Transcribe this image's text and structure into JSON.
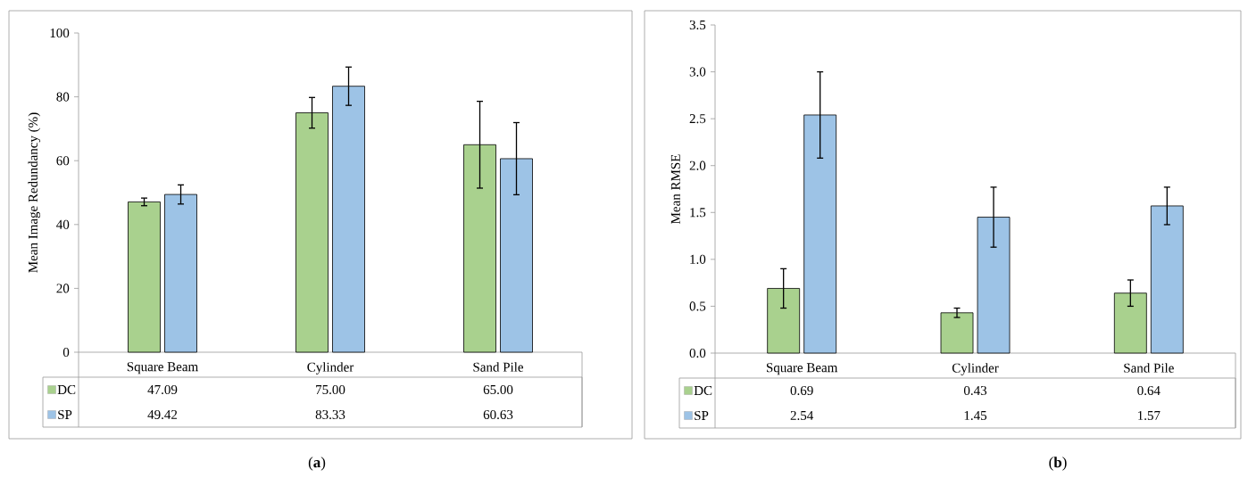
{
  "chart_data": [
    {
      "type": "bar",
      "ylabel": "Mean Image Redundancy (%)",
      "categories": [
        "Square Beam",
        "Cylinder",
        "Sand Pile"
      ],
      "ylim": [
        0,
        100
      ],
      "yticks": [
        0,
        20,
        40,
        60,
        80,
        100
      ],
      "legend": "bottom",
      "annotations": [
        "(**a**)"
      ],
      "series": [
        {
          "name": "DC",
          "color": "#a9d18e",
          "values": [
            47.09,
            75.0,
            65.0
          ],
          "errors": [
            1.2,
            4.8,
            13.6
          ],
          "value_labels": [
            "47.09",
            "75.00",
            "65.00"
          ]
        },
        {
          "name": "SP",
          "color": "#9dc3e6",
          "values": [
            49.42,
            83.33,
            60.63
          ],
          "errors": [
            3.0,
            6.0,
            11.3
          ],
          "value_labels": [
            "49.42",
            "83.33",
            "60.63"
          ]
        }
      ]
    },
    {
      "type": "bar",
      "ylabel": "Mean RMSE",
      "categories": [
        "Square Beam",
        "Cylinder",
        "Sand Pile"
      ],
      "ylim": [
        0,
        3.5
      ],
      "yticks": [
        {
          "value": 0,
          "label": "0.0"
        },
        {
          "value": 0.5,
          "label": "0.5"
        },
        {
          "value": 1,
          "label": "1.0"
        },
        {
          "value": 1.5,
          "label": "1.5"
        },
        {
          "value": 2,
          "label": "2.0"
        },
        {
          "value": 2.5,
          "label": "2.5"
        },
        {
          "value": 3,
          "label": "3.0"
        },
        {
          "value": 3.5,
          "label": "3.5"
        }
      ],
      "legend": "bottom",
      "annotations": [
        "(**b**)"
      ],
      "series": [
        {
          "name": "DC",
          "color": "#a9d18e",
          "values": [
            0.69,
            0.43,
            0.64
          ],
          "errors": [
            0.21,
            0.05,
            0.14
          ],
          "value_labels": [
            "0.69",
            "0.43",
            "0.64"
          ]
        },
        {
          "name": "SP",
          "color": "#9dc3e6",
          "values": [
            2.54,
            1.45,
            1.57
          ],
          "errors": [
            0.46,
            0.32,
            0.2
          ],
          "value_labels": [
            "2.54",
            "1.45",
            "1.57"
          ]
        }
      ]
    }
  ]
}
